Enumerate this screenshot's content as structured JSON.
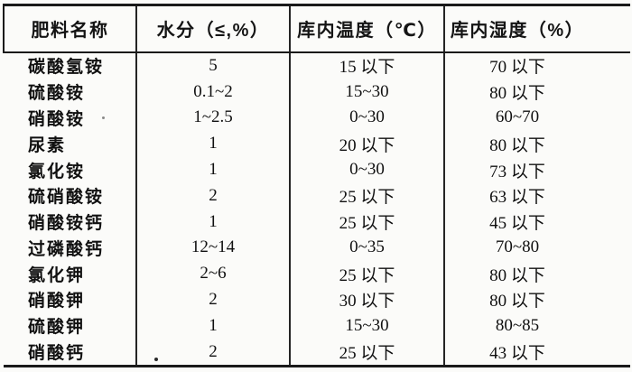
{
  "table": {
    "headers": {
      "name": "肥料名称",
      "moisture": "水分（≤,%）",
      "temperature": "库内温度（℃）",
      "humidity": "库内湿度（%）"
    },
    "rows": [
      {
        "name": "碳酸氢铵",
        "moisture": "5",
        "temperature": "15 以下",
        "humidity": "70 以下"
      },
      {
        "name": "硫酸铵",
        "moisture": "0.1~2",
        "temperature": "15~30",
        "humidity": "80 以下"
      },
      {
        "name": "硝酸铵",
        "moisture": "1~2.5",
        "temperature": "0~30",
        "humidity": "60~70"
      },
      {
        "name": "尿素",
        "moisture": "1",
        "temperature": "20 以下",
        "humidity": "80 以下"
      },
      {
        "name": "氯化铵",
        "moisture": "1",
        "temperature": "0~30",
        "humidity": "73 以下"
      },
      {
        "name": "硫硝酸铵",
        "moisture": "2",
        "temperature": "25 以下",
        "humidity": "63 以下"
      },
      {
        "name": "硝酸铵钙",
        "moisture": "1",
        "temperature": "25 以下",
        "humidity": "45 以下"
      },
      {
        "name": "过磷酸钙",
        "moisture": "12~14",
        "temperature": "0~35",
        "humidity": "70~80"
      },
      {
        "name": "氯化钾",
        "moisture": "2~6",
        "temperature": "25 以下",
        "humidity": "80 以下"
      },
      {
        "name": "硝酸钾",
        "moisture": "2",
        "temperature": "30 以下",
        "humidity": "80 以下"
      },
      {
        "name": "硫酸钾",
        "moisture": "1",
        "temperature": "15~30",
        "humidity": "80~85"
      },
      {
        "name": "硝酸钙",
        "moisture": "2",
        "temperature": "25 以下",
        "humidity": "43 以下"
      }
    ]
  }
}
